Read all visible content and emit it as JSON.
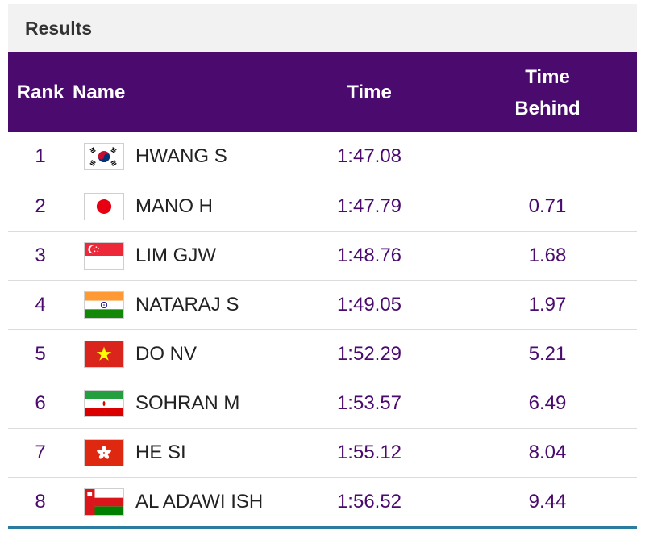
{
  "header": {
    "title": "Results"
  },
  "columns": {
    "rank": "Rank",
    "name": "Name",
    "time": "Time",
    "behind_line1": "Time",
    "behind_line2": "Behind"
  },
  "rows": [
    {
      "rank": "1",
      "name": "HWANG S",
      "time": "1:47.08",
      "behind": "",
      "flag": "korea-flag-icon"
    },
    {
      "rank": "2",
      "name": "MANO H",
      "time": "1:47.79",
      "behind": "0.71",
      "flag": "japan-flag-icon"
    },
    {
      "rank": "3",
      "name": "LIM GJW",
      "time": "1:48.76",
      "behind": "1.68",
      "flag": "singapore-flag-icon"
    },
    {
      "rank": "4",
      "name": "NATARAJ S",
      "time": "1:49.05",
      "behind": "1.97",
      "flag": "india-flag-icon"
    },
    {
      "rank": "5",
      "name": "DO NV",
      "time": "1:52.29",
      "behind": "5.21",
      "flag": "vietnam-flag-icon"
    },
    {
      "rank": "6",
      "name": "SOHRAN M",
      "time": "1:53.57",
      "behind": "6.49",
      "flag": "iran-flag-icon"
    },
    {
      "rank": "7",
      "name": "HE SI",
      "time": "1:55.12",
      "behind": "8.04",
      "flag": "hong-kong-flag-icon"
    },
    {
      "rank": "8",
      "name": "AL ADAWI ISH",
      "time": "1:56.52",
      "behind": "9.44",
      "flag": "oman-flag-icon"
    }
  ],
  "colors": {
    "header_bg": "#4a0a6e",
    "accent_text": "#4a0a6e",
    "rule": "#2a7d9e"
  }
}
